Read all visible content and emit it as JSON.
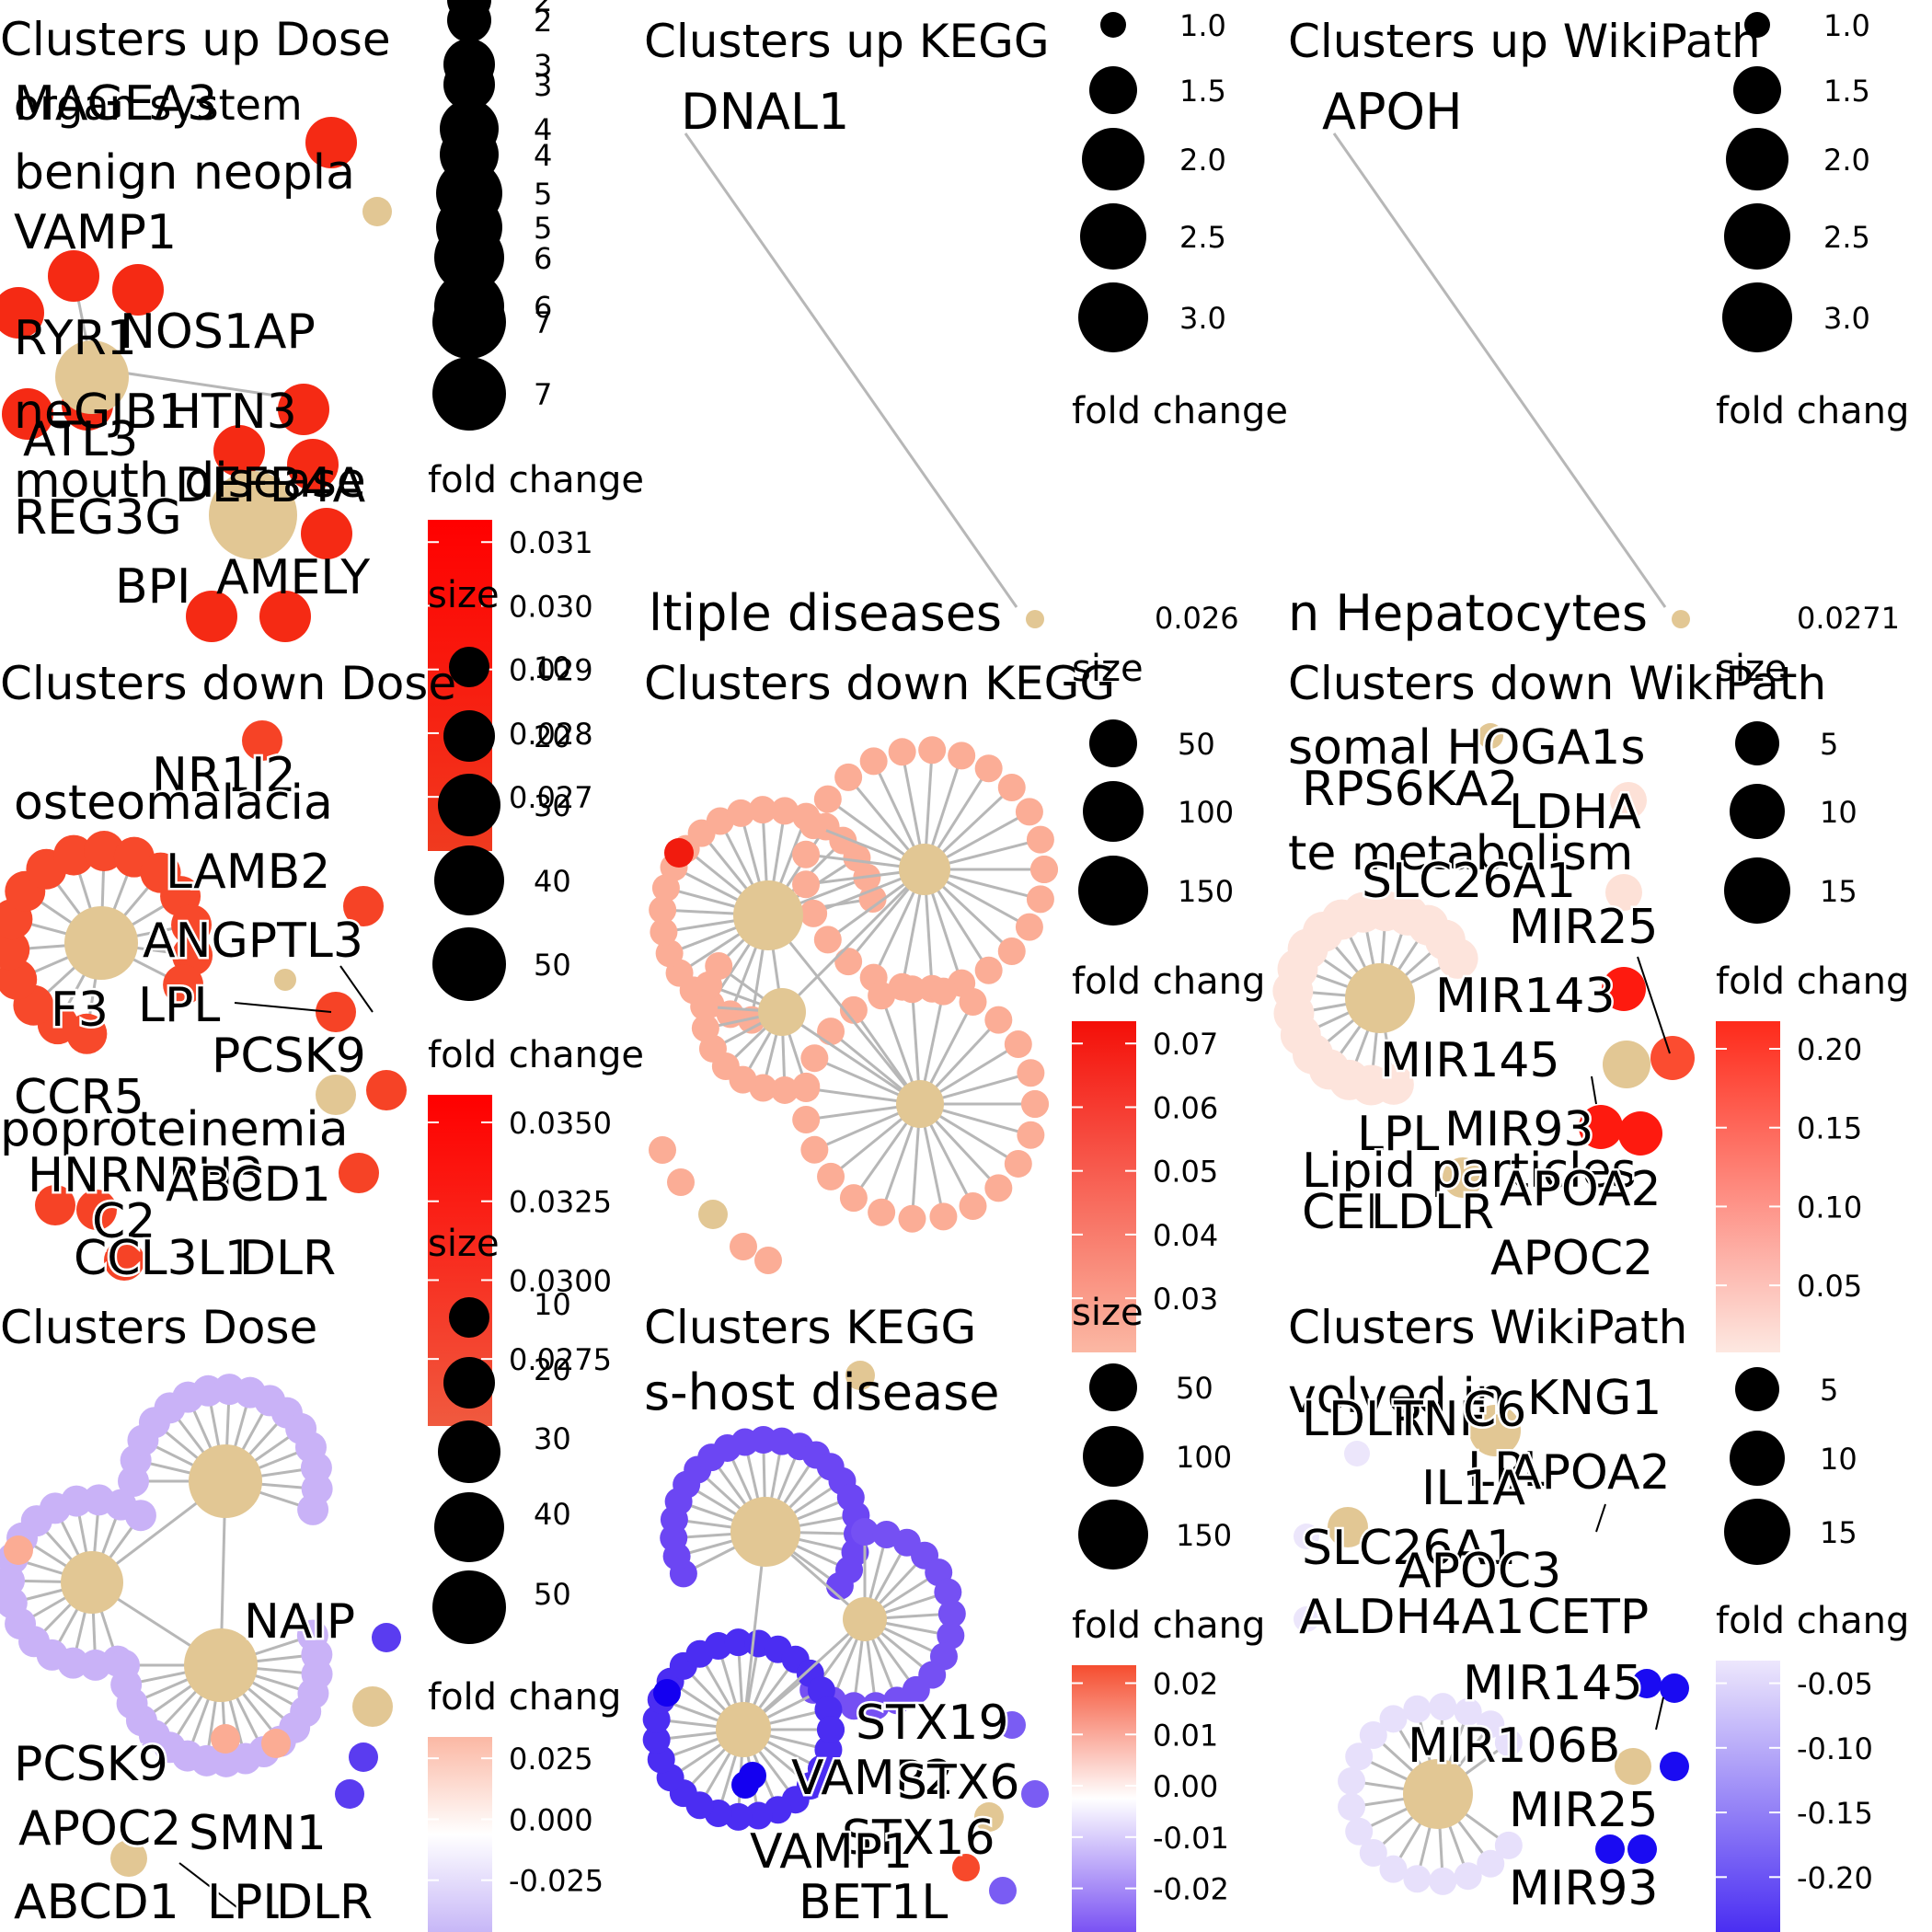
{
  "chart_data": [
    {
      "type": "network",
      "title": "Clusters up Dose",
      "direction": "up",
      "hubs": [
        {
          "name": "benign neoplasm",
          "size": 4
        },
        {
          "name": "mouth disease",
          "size": 7
        },
        {
          "name": "nervous system disease",
          "size": 5
        }
      ],
      "gene_labels": [
        "MAGEA3",
        "VAMP1",
        "RYR1",
        "NOS1AP",
        "GJB1",
        "HTN3",
        "ATL3",
        "DEFB4A",
        "REG3G",
        "BPI",
        "AMELY"
      ],
      "hub_labels": [
        "organ system",
        "benign neopla",
        "neGJB1",
        "mouth disease"
      ],
      "size_legend": {
        "title": "size",
        "labels": [
          "2",
          "3",
          "4",
          "5",
          "6",
          "7"
        ]
      },
      "color_legend": {
        "title": "fold change",
        "labels": [
          "0.031",
          "0.030",
          "0.029",
          "0.028",
          "0.027"
        ],
        "colors": [
          "#ff0000",
          "#f03a1f"
        ]
      }
    },
    {
      "type": "network",
      "title": "Clusters up KEGG",
      "direction": "up",
      "hubs": [
        {
          "name": "multiple diseases",
          "size": 1
        }
      ],
      "gene_labels": [
        "DNAL1"
      ],
      "hub_labels": [
        "ltiple diseases"
      ],
      "size_legend": {
        "title": "",
        "labels": [
          "1.0",
          "1.5",
          "2.0",
          "2.5",
          "3.0"
        ]
      },
      "color_legend": {
        "title": "fold change",
        "labels": [
          "0.026"
        ]
      }
    },
    {
      "type": "network",
      "title": "Clusters up WikiPath",
      "direction": "up",
      "hubs": [
        {
          "name": "in Hepatocytes",
          "size": 1
        }
      ],
      "gene_labels": [
        "APOH"
      ],
      "hub_labels": [
        "n Hepatocytes"
      ],
      "size_legend": {
        "title": "",
        "labels": [
          "1.0",
          "1.5",
          "2.0",
          "2.5",
          "3.0"
        ]
      },
      "color_legend": {
        "title": "fold chang",
        "labels": [
          "0.0271"
        ]
      }
    },
    {
      "type": "network",
      "title": "Clusters down Dose",
      "direction": "down",
      "hubs": [
        {
          "name": "osteomalacia",
          "size": 30
        },
        {
          "name": "hypolipoproteinemia",
          "size": 10
        }
      ],
      "gene_labels": [
        "NR1I2",
        "LAMB2",
        "ANGPTL3",
        "F3",
        "LPL",
        "PCSK9",
        "CCR5",
        "HNRNPH3",
        "ABCD1",
        "C2",
        "CCL3L1",
        "DLR"
      ],
      "hub_labels": [
        "osteomalacia",
        "poproteinemia"
      ],
      "size_legend": {
        "title": "size",
        "labels": [
          "10",
          "20",
          "30",
          "40",
          "50"
        ]
      },
      "color_legend": {
        "title": "fold change",
        "labels": [
          "0.0350",
          "0.0325",
          "0.0300",
          "0.0275"
        ]
      }
    },
    {
      "type": "network",
      "title": "Clusters down KEGG",
      "direction": "down",
      "hubs": [
        {
          "name": "hub-1",
          "size": 150
        },
        {
          "name": "hub-2",
          "size": 100
        },
        {
          "name": "hub-3",
          "size": 50
        },
        {
          "name": "hub-4",
          "size": 50
        },
        {
          "name": "hub-5",
          "size": 5
        }
      ],
      "gene_labels": [],
      "hub_labels": [],
      "size_legend": {
        "title": "size",
        "labels": [
          "50",
          "100",
          "150"
        ]
      },
      "color_legend": {
        "title": "fold chang",
        "labels": [
          "0.07",
          "0.06",
          "0.05",
          "0.04",
          "0.03"
        ]
      }
    },
    {
      "type": "network",
      "title": "Clusters down WikiPath",
      "direction": "down",
      "hubs": [
        {
          "name": "lysosomal HOGA1",
          "size": 15
        },
        {
          "name": "te metabolism",
          "size": 5
        },
        {
          "name": "Lipid particles",
          "size": 5
        }
      ],
      "gene_labels": [
        "HOGA1",
        "RPS6KA2",
        "LDHA",
        "SLC26A1",
        "MIR25",
        "MIR143",
        "MIR145",
        "LPL",
        "MIR93",
        "CEL",
        "LDLR",
        "APOA2",
        "APOC2"
      ],
      "hub_labels": [
        "somal HOGA1s",
        "te metabolism",
        "Lipid particles"
      ],
      "size_legend": {
        "title": "size",
        "labels": [
          "5",
          "10",
          "15"
        ]
      },
      "color_legend": {
        "title": "fold chang",
        "labels": [
          "0.20",
          "0.15",
          "0.10",
          "0.05"
        ]
      }
    },
    {
      "type": "network",
      "title": "Clusters  Dose",
      "direction": "both",
      "hubs": [
        {
          "name": "hub-1",
          "size": 50
        },
        {
          "name": "hub-2",
          "size": 40
        },
        {
          "name": "hub-3",
          "size": 40
        },
        {
          "name": "hub-4",
          "size": 10
        },
        {
          "name": "hub-5",
          "size": 5
        }
      ],
      "gene_labels": [
        "NAIP",
        "PCSK9",
        "APOC2",
        "SMN1",
        "ABCD1",
        "LPL",
        "DLR"
      ],
      "hub_labels": [],
      "size_legend": {
        "title": "size",
        "labels": [
          "10",
          "20",
          "30",
          "40",
          "50"
        ]
      },
      "color_legend": {
        "title": "fold chang",
        "labels": [
          "0.025",
          "0.000",
          "-0.025"
        ]
      }
    },
    {
      "type": "network",
      "title": "Clusters  KEGG",
      "direction": "both",
      "hubs": [
        {
          "name": "graft-versus-host disease",
          "size": 150
        },
        {
          "name": "hub-2",
          "size": 100
        },
        {
          "name": "hub-3",
          "size": 50
        }
      ],
      "gene_labels": [
        "STX19",
        "VAMP2",
        "STX6",
        "STX16",
        "VAMP1",
        "BET1L"
      ],
      "hub_labels": [
        "s-host disease"
      ],
      "size_legend": {
        "title": "size",
        "labels": [
          "50",
          "100",
          "150"
        ]
      },
      "color_legend": {
        "title": "fold chang",
        "labels": [
          "0.02",
          "0.01",
          "0.00",
          "-0.01",
          "-0.02"
        ]
      }
    },
    {
      "type": "network",
      "title": "Clusters  WikiPath",
      "direction": "both",
      "hubs": [
        {
          "name": "hub-1",
          "size": 15
        },
        {
          "name": "hub-2",
          "size": 10
        },
        {
          "name": "hub-3",
          "size": 5
        }
      ],
      "gene_labels": [
        "LDLR",
        "TNF",
        "C6",
        "KNG1",
        "LPL",
        "APOA2",
        "IL1A",
        "SLC26A1",
        "APOC3",
        "ALDH4A1",
        "CETP",
        "MIR145",
        "MIR106B",
        "MIR25",
        "MIR93"
      ],
      "hub_labels": [
        "volved in"
      ],
      "size_legend": {
        "title": "",
        "labels": [
          "5",
          "10",
          "15"
        ]
      },
      "color_legend": {
        "title": "fold chang",
        "labels": [
          "-0.05",
          "-0.10",
          "-0.15",
          "-0.20"
        ]
      }
    }
  ]
}
